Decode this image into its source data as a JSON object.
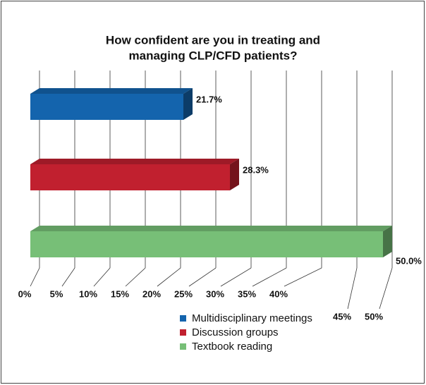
{
  "chart_data": {
    "type": "bar3d_horizontal",
    "title": [
      "How confident are you in treating and",
      "managing CLP/CFD patients?"
    ],
    "series": [
      {
        "name": "Multidisciplinary meetings",
        "color": "#1464ad",
        "values": [
          21.7
        ],
        "value_labels": [
          "21.7%"
        ]
      },
      {
        "name": "Discussion groups",
        "color": "#c1202f",
        "values": [
          28.3
        ],
        "value_labels": [
          "28.3%"
        ]
      },
      {
        "name": "Textbook reading",
        "color": "#77bf77",
        "values": [
          50.0
        ],
        "value_labels": [
          "50.0%"
        ]
      }
    ],
    "xlim": [
      0,
      50
    ],
    "xticks": [
      {
        "value": 0,
        "label": "0%"
      },
      {
        "value": 5,
        "label": "5%"
      },
      {
        "value": 10,
        "label": "10%"
      },
      {
        "value": 15,
        "label": "15%"
      },
      {
        "value": 20,
        "label": "20%"
      },
      {
        "value": 25,
        "label": "25%"
      },
      {
        "value": 30,
        "label": "30%"
      },
      {
        "value": 35,
        "label": "35%"
      },
      {
        "value": 40,
        "label": "40%"
      },
      {
        "value": 45,
        "label": "45%"
      },
      {
        "value": 50,
        "label": "50%"
      }
    ],
    "grid": true
  }
}
